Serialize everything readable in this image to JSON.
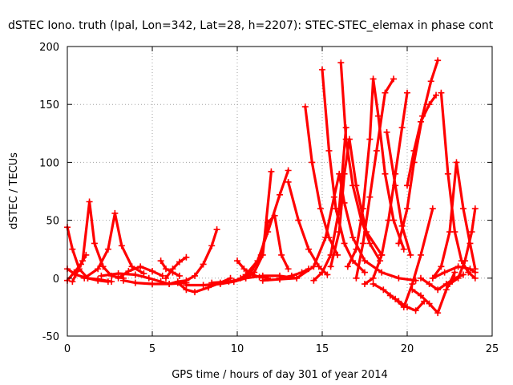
{
  "chart_data": {
    "type": "scatter",
    "title": "dSTEC Iono. truth (Ipal, Lon=342, Lat=28, h=2207): STEC-STEC_elemax in phase cont",
    "xlabel": "GPS time / hours of day 301 of year 2014",
    "ylabel": "dSTEC  / TECUs",
    "xlim": [
      0,
      25
    ],
    "ylim": [
      -50,
      200
    ],
    "xticks": [
      0,
      5,
      10,
      15,
      20,
      25
    ],
    "yticks": [
      -50,
      0,
      50,
      100,
      150,
      200
    ],
    "x_tick_labels": [
      "0",
      "5",
      "10",
      "15",
      "20",
      "25"
    ],
    "y_tick_labels": [
      "-50",
      "0",
      "50",
      "100",
      "150",
      "200"
    ],
    "grid": true,
    "marker": "+",
    "color": "#ff0000",
    "series": [
      {
        "x": [
          0.0,
          0.3,
          0.7,
          1.2,
          1.8,
          2.4
        ],
        "y": [
          44,
          25,
          8,
          0,
          -2,
          -3
        ]
      },
      {
        "x": [
          0.0,
          0.4,
          0.8,
          1.1
        ],
        "y": [
          -2,
          5,
          12,
          20
        ]
      },
      {
        "x": [
          0.0,
          0.5,
          1.2,
          1.8,
          2.6
        ],
        "y": [
          8,
          3,
          0,
          -1,
          -3
        ]
      },
      {
        "x": [
          0.3,
          0.9,
          1.3,
          1.6,
          2.1,
          2.6,
          3.3
        ],
        "y": [
          -3,
          15,
          66,
          30,
          10,
          2,
          0
        ]
      },
      {
        "x": [
          1.0,
          1.8,
          2.4,
          2.8,
          3.2,
          3.8,
          4.5
        ],
        "y": [
          0,
          8,
          25,
          56,
          28,
          10,
          4
        ]
      },
      {
        "x": [
          2.0,
          3.0,
          4.0,
          4.8,
          5.5,
          6.0
        ],
        "y": [
          2,
          4,
          3,
          0,
          -3,
          -5
        ]
      },
      {
        "x": [
          3.0,
          3.6,
          4.3,
          5.0,
          5.6
        ],
        "y": [
          0,
          6,
          10,
          6,
          2
        ]
      },
      {
        "x": [
          3.3,
          4.0,
          5.0,
          6.0,
          7.0
        ],
        "y": [
          -2,
          -4,
          -5,
          -5,
          -4
        ]
      },
      {
        "x": [
          5.5,
          5.8,
          6.2,
          6.6
        ],
        "y": [
          15,
          8,
          5,
          2
        ]
      },
      {
        "x": [
          5.8,
          6.2,
          6.6,
          7.0
        ],
        "y": [
          0,
          8,
          14,
          18
        ]
      },
      {
        "x": [
          6.0,
          6.5,
          7.0,
          7.5,
          8.0,
          8.5,
          8.8
        ],
        "y": [
          -5,
          -3,
          -2,
          2,
          12,
          28,
          42
        ]
      },
      {
        "x": [
          6.5,
          7.0,
          7.5,
          8.3,
          9.0,
          9.6
        ],
        "y": [
          -4,
          -10,
          -12,
          -8,
          -4,
          0
        ]
      },
      {
        "x": [
          7.0,
          8.0,
          9.0,
          9.8,
          10.5,
          11.0,
          11.5,
          12.0
        ],
        "y": [
          -6,
          -6,
          -5,
          -3,
          0,
          5,
          20,
          92
        ]
      },
      {
        "x": [
          8.5,
          9.5,
          10.5,
          11.5,
          12.5,
          13.5
        ],
        "y": [
          -4,
          -3,
          0,
          2,
          2,
          0
        ]
      },
      {
        "x": [
          10.0,
          10.4,
          10.9,
          11.3,
          11.8
        ],
        "y": [
          15,
          8,
          3,
          1,
          0
        ]
      },
      {
        "x": [
          10.2,
          10.8,
          11.4,
          11.8,
          12.2,
          12.6,
          13.0
        ],
        "y": [
          0,
          5,
          20,
          48,
          54,
          20,
          8
        ]
      },
      {
        "x": [
          10.5,
          11.2,
          11.8,
          12.5,
          13.0
        ],
        "y": [
          3,
          15,
          40,
          72,
          93
        ]
      },
      {
        "x": [
          11.5,
          12.5,
          13.5,
          14.5,
          15.2,
          15.7,
          16.0,
          16.3,
          16.8,
          17.5,
          18.5,
          19.5,
          20.5
        ],
        "y": [
          -2,
          -1,
          0,
          10,
          35,
          70,
          90,
          65,
          35,
          15,
          5,
          0,
          -2
        ]
      },
      {
        "x": [
          12.5,
          13.2,
          13.8,
          14.2
        ],
        "y": [
          0,
          2,
          5,
          8
        ]
      },
      {
        "x": [
          13.0,
          13.6,
          14.2,
          14.8,
          15.3
        ],
        "y": [
          83,
          50,
          25,
          10,
          3
        ]
      },
      {
        "x": [
          14.0,
          14.4,
          14.9,
          15.4,
          15.9
        ],
        "y": [
          148,
          100,
          60,
          35,
          20
        ]
      },
      {
        "x": [
          14.5,
          15.0,
          15.5,
          16.0,
          16.4
        ],
        "y": [
          -2,
          5,
          20,
          60,
          130
        ]
      },
      {
        "x": [
          15.0,
          15.4,
          15.8,
          16.3,
          16.8,
          17.5
        ],
        "y": [
          180,
          110,
          60,
          30,
          15,
          5
        ]
      },
      {
        "x": [
          15.5,
          16.0,
          16.3,
          16.6,
          17.0,
          17.6,
          18.5
        ],
        "y": [
          10,
          40,
          90,
          120,
          80,
          40,
          20
        ]
      },
      {
        "x": [
          16.1,
          16.4,
          16.8,
          17.3,
          17.8,
          18.4
        ],
        "y": [
          186,
          120,
          80,
          50,
          30,
          15
        ]
      },
      {
        "x": [
          16.5,
          17.0,
          17.4,
          17.8,
          18.0,
          18.3,
          18.7,
          19.2,
          19.8
        ],
        "y": [
          10,
          25,
          60,
          120,
          172,
          140,
          90,
          50,
          25
        ]
      },
      {
        "x": [
          17.0,
          17.4,
          17.8,
          18.2,
          18.7,
          19.2
        ],
        "y": [
          0,
          30,
          70,
          110,
          160,
          172
        ]
      },
      {
        "x": [
          17.5,
          18.0,
          18.5,
          18.9,
          19.3,
          19.7,
          20.0
        ],
        "y": [
          -5,
          0,
          20,
          50,
          90,
          130,
          160
        ]
      },
      {
        "x": [
          18.0,
          18.6,
          19.3,
          19.8,
          20.3,
          20.8,
          21.5
        ],
        "y": [
          -5,
          -10,
          -18,
          -25,
          -5,
          20,
          60
        ]
      },
      {
        "x": [
          18.8,
          19.3,
          19.7,
          20.2
        ],
        "y": [
          126,
          80,
          45,
          20
        ]
      },
      {
        "x": [
          19.0,
          19.5,
          20.0,
          20.5,
          21.0
        ],
        "y": [
          -15,
          -20,
          -25,
          -28,
          -20
        ]
      },
      {
        "x": [
          19.5,
          20.0,
          20.4,
          20.9,
          21.4,
          21.8
        ],
        "y": [
          30,
          60,
          100,
          140,
          170,
          188
        ]
      },
      {
        "x": [
          20.0,
          20.4,
          20.8,
          21.3,
          21.7
        ],
        "y": [
          80,
          110,
          135,
          150,
          158
        ]
      },
      {
        "x": [
          20.3,
          20.8,
          21.3,
          21.8,
          22.3,
          22.8
        ],
        "y": [
          -10,
          -15,
          -22,
          -30,
          -10,
          5
        ]
      },
      {
        "x": [
          20.8,
          21.3,
          21.8,
          22.3,
          22.8,
          23.3
        ],
        "y": [
          0,
          -5,
          -10,
          -5,
          0,
          3
        ]
      },
      {
        "x": [
          21.5,
          22.0,
          22.5,
          22.9,
          23.3,
          23.7,
          24.0
        ],
        "y": [
          0,
          10,
          40,
          100,
          60,
          30,
          8
        ]
      },
      {
        "x": [
          22.0,
          22.4,
          22.8,
          23.2,
          23.6,
          24.0
        ],
        "y": [
          160,
          90,
          40,
          15,
          5,
          0
        ]
      },
      {
        "x": [
          22.5,
          23.0,
          23.4,
          23.8,
          24.0
        ],
        "y": [
          -5,
          0,
          15,
          40,
          60
        ]
      },
      {
        "x": [
          21.5,
          22.2,
          23.0,
          23.7,
          24.0
        ],
        "y": [
          0,
          5,
          10,
          8,
          5
        ]
      }
    ]
  }
}
